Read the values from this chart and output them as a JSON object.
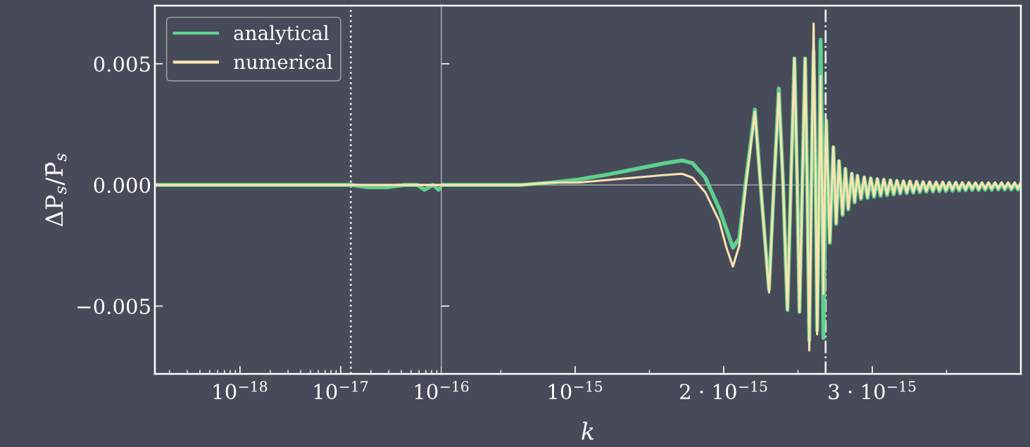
{
  "chart_data": [
    {
      "type": "line",
      "ylabel": "ΔP$_{s}$/P̄$_{s}$",
      "log": "x",
      "legend": "top left",
      "line_style": "solid",
      "marker": "none",
      "grid": false,
      "xlim": [
        1.43e-19,
        1e-16
      ],
      "ylim": [
        -0.0078,
        0.0074
      ],
      "xticks": [
        {
          "value": 1e-18,
          "label": "10$^{−18}$"
        },
        {
          "value": 1e-17,
          "label": "10$^{−17}$"
        },
        {
          "value": 1e-16,
          "label": "10$^{−16}$"
        }
      ],
      "yticks": [
        {
          "value": -0.005,
          "label": "−0.005"
        },
        {
          "value": 0,
          "label": "0.000"
        },
        {
          "value": 0.005,
          "label": "0.005"
        }
      ],
      "ref_lines": [
        {
          "axis": "x",
          "value": 1.26e-17,
          "color": "#e8e8e8",
          "line_style": "dotted"
        }
      ],
      "x": [
        1.43e-19,
        1e-18,
        1e-17,
        1.26e-17,
        1.85e-17,
        2.87e-17,
        4.38e-17,
        5.77e-17,
        6.78e-17,
        8.23e-17,
        9.37e-17,
        1e-16
      ],
      "series": [
        {
          "name": "analytical",
          "color": "#5fcf8f",
          "values": [
            0,
            0,
            0,
            0,
            -0.0001,
            -0.0001,
            0,
            0,
            -0.0002,
            0,
            -0.0002,
            -0.0001
          ]
        },
        {
          "name": "numerical",
          "color": "#fde3b0",
          "values": [
            0,
            0,
            0,
            0,
            0,
            0,
            0,
            0,
            0,
            0,
            0,
            0
          ]
        }
      ]
    },
    {
      "type": "line",
      "xlabel": "k",
      "tick_labels": "x",
      "line_style": "solid",
      "marker": "none",
      "grid": false,
      "xlim": [
        1e-16,
        4e-15
      ],
      "ylim": [
        -0.0078,
        0.0074
      ],
      "xticks": [
        {
          "value": 5e-16,
          "label": null
        },
        {
          "value": 1e-15,
          "label": "10$^{−15}$"
        },
        {
          "value": 1.5e-15,
          "label": null
        },
        {
          "value": 2e-15,
          "label": "2 · 10$^{−15}$"
        },
        {
          "value": 2.5e-15,
          "label": null
        },
        {
          "value": 3e-15,
          "label": "3 · 10$^{−15}$"
        },
        {
          "value": 3.5e-15,
          "label": null
        }
      ],
      "yticks": [
        -0.005,
        0,
        0.005
      ],
      "ref_lines": [
        {
          "axis": "y",
          "value": 0,
          "color": "#b8b8b8",
          "line_style": "solid"
        },
        {
          "axis": "x",
          "value": 2.686e-15,
          "color": "#e8e8e8",
          "line_style": "dashdot"
        }
      ],
      "x": [
        1e-16,
        2.57e-16,
        4.48e-16,
        6.38e-16,
        8.43e-16,
        1.019e-15,
        1.21e-15,
        1.4e-15,
        1.59e-15,
        1.719e-15,
        1.79e-15,
        1.876e-15,
        1.971e-15,
        2.019e-15,
        2.062e-15,
        2.105e-15,
        2.148e-15,
        2.21e-15,
        2.257e-15,
        2.305e-15,
        2.338e-15,
        2.371e-15,
        2.4e-15,
        2.429e-15,
        2.452e-15,
        2.476e-15,
        2.495e-15,
        2.51e-15,
        2.529e-15,
        2.548e-15,
        2.562e-15,
        2.576e-15,
        2.59e-15,
        2.605e-15,
        2.619e-15,
        2.629e-15,
        2.643e-15,
        2.652e-15,
        2.662e-15,
        2.671e-15,
        2.681e-15,
        2.69e-15,
        2.714e-15,
        2.738e-15,
        2.757e-15,
        2.776e-15,
        2.8e-15,
        2.819e-15,
        2.838e-15,
        2.862e-15,
        2.881e-15,
        2.9e-15,
        2.924e-15,
        2.946e-15,
        2.968e-15,
        2.99e-15,
        3.012e-15,
        3.034e-15,
        3.056e-15,
        3.078e-15,
        3.1e-15,
        3.122e-15,
        3.144e-15,
        3.166e-15,
        3.188e-15,
        3.21e-15,
        3.232e-15,
        3.254e-15,
        3.276e-15,
        3.298e-15,
        3.32e-15,
        3.342e-15,
        3.364e-15,
        3.386e-15,
        3.408e-15,
        3.43e-15,
        3.452e-15,
        3.474e-15,
        3.496e-15,
        3.518e-15,
        3.54e-15,
        3.562e-15,
        3.584e-15,
        3.606e-15,
        3.628e-15,
        3.65e-15,
        3.672e-15,
        3.694e-15,
        3.716e-15,
        3.738e-15,
        3.76e-15,
        3.782e-15,
        3.804e-15,
        3.826e-15,
        3.848e-15,
        3.87e-15,
        3.892e-15,
        3.914e-15,
        3.936e-15,
        3.958e-15,
        3.98e-15,
        4e-15
      ],
      "series": [
        {
          "color": "#5fcf8f",
          "values": [
            0,
            0,
            0,
            0,
            0.0001,
            0.00022,
            0.00042,
            0.00065,
            0.00088,
            0.00101,
            0.0009,
            0.0003,
            -0.001,
            -0.00184,
            -0.00259,
            -0.0022,
            0.0001,
            0.00311,
            -0.0007,
            -0.0043,
            0,
            0.00398,
            0,
            -0.00516,
            0,
            0.00522,
            0,
            -0.00524,
            0,
            0.00522,
            0,
            -0.0064,
            0,
            0.0055,
            0,
            -0.006,
            0,
            0.00599,
            0.002,
            -0.00631,
            -0.002,
            0.00265,
            -0.00239,
            0.00155,
            -0.00161,
            0.00098,
            -0.00124,
            0.00066,
            -0.00101,
            0.00046,
            -0.00072,
            0.00037,
            -0.00058,
            0.0003,
            -0.00054,
            0.00026,
            -0.00049,
            0.00023,
            -0.00045,
            0.0002,
            -0.00042,
            0.00018,
            -0.00039,
            0.00016,
            -0.00036,
            0.00014,
            -0.00034,
            0.00013,
            -0.00032,
            0.00012,
            -0.0003,
            0.00011,
            -0.00028,
            0.0001,
            -0.00027,
            9e-05,
            -0.00026,
            9e-05,
            -0.00025,
            8e-05,
            -0.00024,
            8e-05,
            -0.00023,
            7e-05,
            -0.00022,
            7e-05,
            -0.00021,
            6e-05,
            -0.00021,
            6e-05,
            -0.0002,
            6e-05,
            -0.0002,
            6e-05,
            -0.00019,
            6e-05,
            -0.00019,
            6e-05,
            -0.00019,
            6e-05,
            -0.00019,
            6e-05
          ]
        },
        {
          "color": "#fde3b0",
          "values": [
            0,
            0,
            0,
            0,
            0.0001,
            0.0001,
            0.0002,
            0.0003,
            0.0004,
            0.00046,
            0.0003,
            -0.0003,
            -0.0015,
            -0.0026,
            -0.00337,
            -0.0025,
            -6e-05,
            0.00302,
            -0.0007,
            -0.00444,
            0,
            0.00378,
            0,
            -0.00516,
            0,
            0.00522,
            0,
            -0.00524,
            0,
            0.00522,
            0,
            -0.00683,
            0,
            0.00666,
            0,
            -0.00617,
            0,
            0.0045,
            0,
            -0.0045,
            0,
            0.00268,
            -0.00236,
            0.00158,
            -0.00158,
            0.00101,
            -0.00121,
            0.00069,
            -0.00098,
            0.00049,
            -0.00069,
            0.0004,
            -0.00055,
            0.00034,
            -0.0005,
            0.0003,
            -0.00045,
            0.00027,
            -0.00041,
            0.00024,
            -0.00038,
            0.00022,
            -0.00035,
            0.0002,
            -0.00032,
            0.00018,
            -0.0003,
            0.00017,
            -0.00028,
            0.00016,
            -0.00026,
            0.00015,
            -0.00024,
            0.00014,
            -0.00023,
            0.00013,
            -0.00022,
            0.00013,
            -0.00021,
            0.00012,
            -0.0002,
            0.00012,
            -0.00019,
            0.00011,
            -0.00018,
            0.00011,
            -0.00017,
            0.0001,
            -0.00017,
            0.0001,
            -0.00016,
            0.0001,
            -0.00016,
            0.0001,
            -0.00015,
            0.0001,
            -0.00015,
            0.0001,
            -0.00015,
            0.0001,
            -0.00015,
            0.0001
          ]
        }
      ]
    }
  ]
}
